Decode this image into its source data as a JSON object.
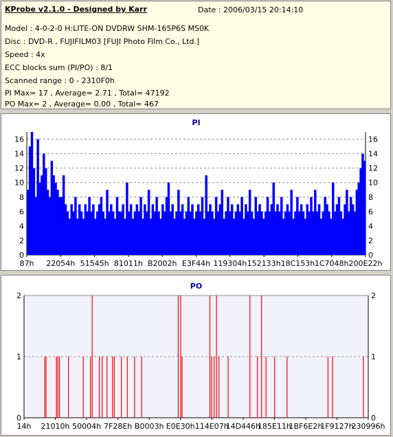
{
  "header": {
    "title": "KProbe v2.1.0 - Designed by Karr",
    "date": "Date : 2006/03/15 20:14:10",
    "lines": [
      "Model : 4-0-2-0 H:LITE-ON DVDRW SHM-165P6S MS0K",
      "Disc : DVD-R , FUJIFILM03 [FUJI Photo Film Co., Ltd.]",
      "Speed : 4x",
      "ECC blocks sum (PI/PO) : 8/1",
      "Scanned range : 0 - 2310F0h",
      "PI Max= 17 , Average= 2.71 , Total= 47192",
      "PO Max= 2 , Average= 0.00 , Total= 467"
    ]
  },
  "colors": {
    "pi_bar": "#0000ff",
    "po_bar": "#ff0000",
    "title_blue": "#0000a0",
    "grid": "#909090"
  },
  "chart_data": [
    {
      "type": "bar",
      "title": "PI",
      "x_tick_labels": [
        "87h",
        "22054h",
        "51545h",
        "81011h",
        "B2002h",
        "E3F44h",
        "119304h",
        "152133h",
        "18C153h",
        "1C7048h",
        "200E22h"
      ],
      "y_ticks": [
        0,
        2,
        4,
        6,
        8,
        10,
        12,
        14,
        16
      ],
      "ylim": [
        0,
        17
      ],
      "grid": true,
      "pattern": "0-based index = scan position across range; value = PI errors",
      "values": [
        9,
        15,
        17,
        12,
        8,
        16,
        10,
        11,
        14,
        12,
        9,
        8,
        13,
        11,
        10,
        9,
        8,
        8,
        11,
        7,
        6,
        5,
        7,
        6,
        8,
        5,
        7,
        6,
        5,
        7,
        6,
        8,
        6,
        7,
        5,
        6,
        7,
        8,
        6,
        5,
        9,
        6,
        7,
        6,
        5,
        8,
        6,
        6,
        7,
        5,
        10,
        6,
        7,
        5,
        6,
        7,
        6,
        8,
        5,
        7,
        6,
        9,
        5,
        7,
        6,
        8,
        6,
        5,
        7,
        6,
        8,
        10,
        6,
        7,
        5,
        6,
        9,
        6,
        7,
        5,
        6,
        8,
        6,
        7,
        5,
        6,
        7,
        6,
        8,
        5,
        11,
        6,
        7,
        6,
        5,
        8,
        6,
        7,
        9,
        5,
        6,
        8,
        6,
        7,
        5,
        6,
        7,
        6,
        8,
        5,
        7,
        6,
        9,
        6,
        5,
        8,
        6,
        7,
        6,
        5,
        6,
        8,
        6,
        7,
        10,
        6,
        7,
        6,
        8,
        5,
        6,
        7,
        6,
        9,
        5,
        6,
        8,
        6,
        7,
        6,
        5,
        7,
        6,
        8,
        6,
        9,
        6,
        7,
        5,
        6,
        8,
        7,
        6,
        5,
        10,
        6,
        7,
        8,
        6,
        5,
        7,
        9,
        6,
        8,
        7,
        6,
        9,
        10,
        12,
        14,
        13
      ],
      "value_count_note": ""
    },
    {
      "type": "bar",
      "title": "PO",
      "x_tick_labels": [
        "14h",
        "21010h",
        "50004h",
        "7F28Eh",
        "B0003h",
        "E0E30h",
        "114E07h",
        "14D446h",
        "185E11h",
        "1BF6E2h",
        "1F9127h",
        "230996h"
      ],
      "y_ticks": [
        0,
        1,
        2
      ],
      "ylim": [
        0,
        2
      ],
      "grid": true,
      "events": [
        {
          "pos": 0.06,
          "v": 1
        },
        {
          "pos": 0.064,
          "v": 1
        },
        {
          "pos": 0.094,
          "v": 1
        },
        {
          "pos": 0.098,
          "v": 1
        },
        {
          "pos": 0.103,
          "v": 1
        },
        {
          "pos": 0.129,
          "v": 1
        },
        {
          "pos": 0.172,
          "v": 1
        },
        {
          "pos": 0.193,
          "v": 1
        },
        {
          "pos": 0.198,
          "v": 2
        },
        {
          "pos": 0.219,
          "v": 1
        },
        {
          "pos": 0.227,
          "v": 1
        },
        {
          "pos": 0.241,
          "v": 1
        },
        {
          "pos": 0.257,
          "v": 1
        },
        {
          "pos": 0.262,
          "v": 1
        },
        {
          "pos": 0.283,
          "v": 1
        },
        {
          "pos": 0.3,
          "v": 1
        },
        {
          "pos": 0.321,
          "v": 1
        },
        {
          "pos": 0.342,
          "v": 1
        },
        {
          "pos": 0.448,
          "v": 2
        },
        {
          "pos": 0.455,
          "v": 2
        },
        {
          "pos": 0.459,
          "v": 1
        },
        {
          "pos": 0.54,
          "v": 2
        },
        {
          "pos": 0.545,
          "v": 1
        },
        {
          "pos": 0.552,
          "v": 1
        },
        {
          "pos": 0.559,
          "v": 2
        },
        {
          "pos": 0.566,
          "v": 1
        },
        {
          "pos": 0.593,
          "v": 1
        },
        {
          "pos": 0.656,
          "v": 2
        },
        {
          "pos": 0.678,
          "v": 1
        },
        {
          "pos": 0.69,
          "v": 2
        },
        {
          "pos": 0.703,
          "v": 1
        },
        {
          "pos": 0.728,
          "v": 1
        },
        {
          "pos": 0.764,
          "v": 1
        },
        {
          "pos": 0.883,
          "v": 1
        },
        {
          "pos": 0.896,
          "v": 1
        },
        {
          "pos": 0.986,
          "v": 1
        }
      ]
    }
  ]
}
